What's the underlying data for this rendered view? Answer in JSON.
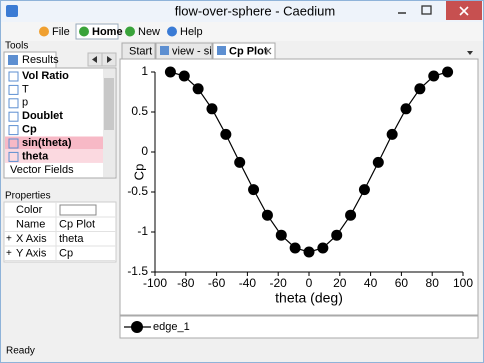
{
  "window": {
    "title": "flow-over-sphere - Caedium"
  },
  "ribbon": {
    "tabs": [
      "File",
      "Home",
      "New",
      "Help"
    ]
  },
  "tools": {
    "label": "Tools",
    "tab": "Results",
    "items": [
      {
        "text": "Vol Ratio",
        "bold": true
      },
      {
        "text": "T",
        "bold": false
      },
      {
        "text": "p",
        "bold": false
      },
      {
        "text": "Doublet",
        "bold": true
      },
      {
        "text": "Cp",
        "bold": true
      },
      {
        "text": "sin(theta)",
        "bold": true,
        "highlight": "#f7b9c6"
      },
      {
        "text": "theta",
        "bold": true,
        "highlight": "#fbd9e0"
      }
    ],
    "group": "Vector Fields"
  },
  "properties": {
    "label": "Properties",
    "rows": [
      {
        "label": "Color"
      },
      {
        "label": "Name",
        "value": "Cp Plot"
      },
      {
        "label": "X Axis",
        "value": "theta",
        "expandable": true
      },
      {
        "label": "Y Axis",
        "value": "Cp",
        "expandable": true
      }
    ]
  },
  "documents": {
    "tabs": [
      "Start",
      "view - sim",
      "Cp Plot"
    ]
  },
  "status": "Ready",
  "chart_data": {
    "type": "line",
    "xlabel": "theta (deg)",
    "ylabel": "Cp",
    "xlim": [
      -100,
      100
    ],
    "xticks": [
      -100,
      -80,
      -60,
      -40,
      -20,
      0,
      20,
      40,
      60,
      80,
      100
    ],
    "ylim": [
      -1.5,
      1
    ],
    "yticks": [
      -1.5,
      -1,
      -0.5,
      0,
      0.5,
      1
    ],
    "markers": true,
    "grid": false,
    "series": [
      {
        "name": "edge_1",
        "color": "#000000",
        "x": [
          -90,
          -81,
          -72,
          -63,
          -54,
          -45,
          -36,
          -27,
          -18,
          -9,
          0,
          9,
          18,
          27,
          36,
          45,
          54,
          63,
          72,
          81,
          90
        ],
        "values": [
          1,
          0.95,
          0.79,
          0.54,
          0.22,
          -0.13,
          -0.47,
          -0.79,
          -1.04,
          -1.2,
          -1.25,
          -1.2,
          -1.04,
          -0.79,
          -0.47,
          -0.13,
          0.22,
          0.54,
          0.79,
          0.95,
          1
        ]
      }
    ]
  }
}
